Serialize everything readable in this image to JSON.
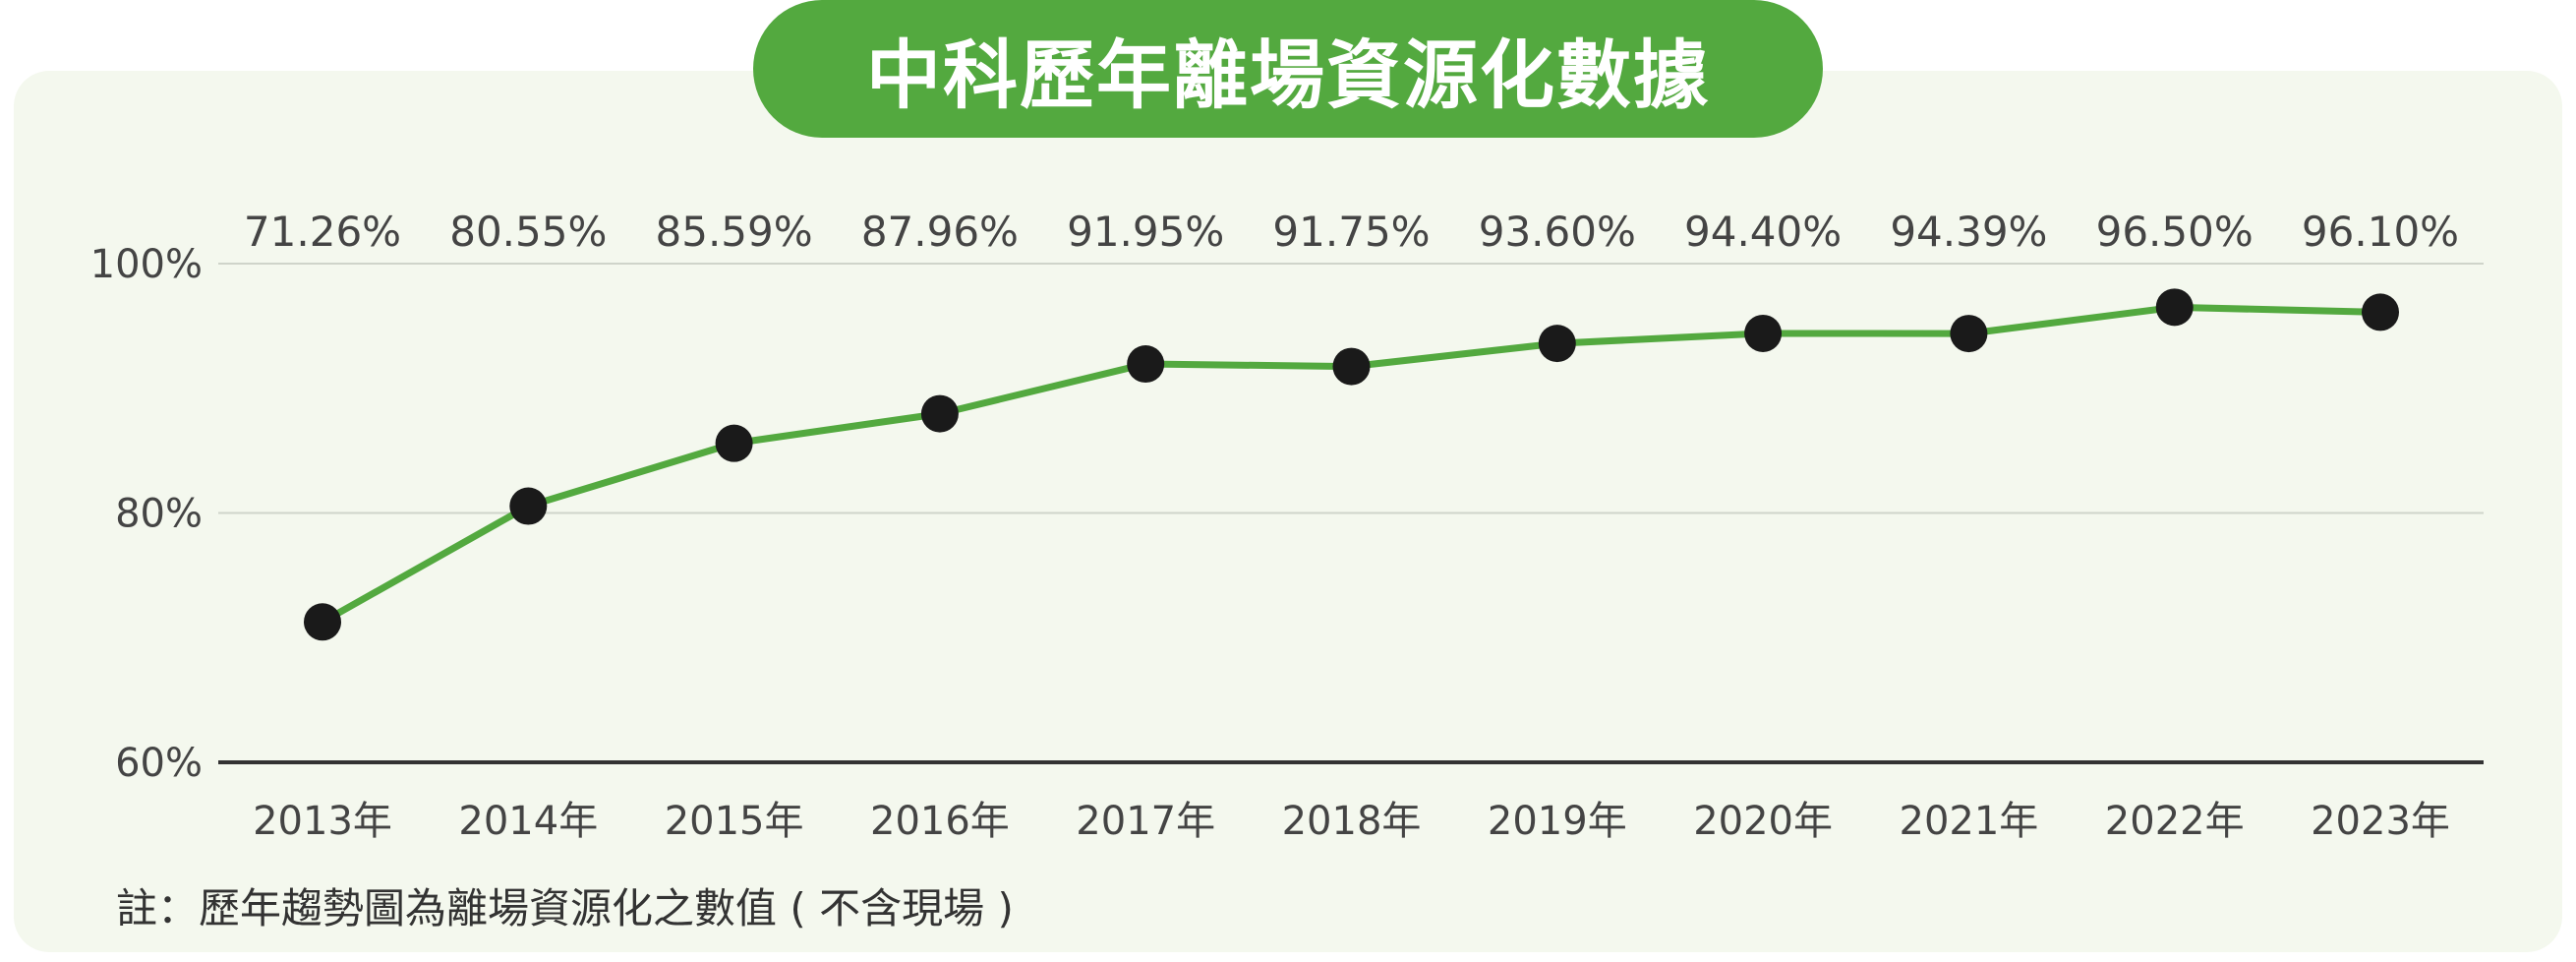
{
  "title": "中科歷年離場資源化數據",
  "note": "註：歷年趨勢圖為離場資源化之數值 ( 不含現場 )",
  "colors": {
    "accent": "#53a93f",
    "line": "#53a93f",
    "point": "#1a1a1a",
    "panel": "#f4f8ee",
    "text": "#444444"
  },
  "chart_data": {
    "type": "line",
    "categories": [
      "2013年",
      "2014年",
      "2015年",
      "2016年",
      "2017年",
      "2018年",
      "2019年",
      "2020年",
      "2021年",
      "2022年",
      "2023年"
    ],
    "values": [
      71.26,
      80.55,
      85.59,
      87.96,
      91.95,
      91.75,
      93.6,
      94.4,
      94.39,
      96.5,
      96.1
    ],
    "data_labels": [
      "71.26%",
      "80.55%",
      "85.59%",
      "87.96%",
      "91.95%",
      "91.75%",
      "93.60%",
      "94.40%",
      "94.39%",
      "96.50%",
      "96.10%"
    ],
    "ylim": [
      60,
      100
    ],
    "yticks": [
      60,
      80,
      100
    ],
    "ytick_labels": [
      "60%",
      "80%",
      "100%"
    ],
    "grid": true,
    "legend": "none"
  }
}
